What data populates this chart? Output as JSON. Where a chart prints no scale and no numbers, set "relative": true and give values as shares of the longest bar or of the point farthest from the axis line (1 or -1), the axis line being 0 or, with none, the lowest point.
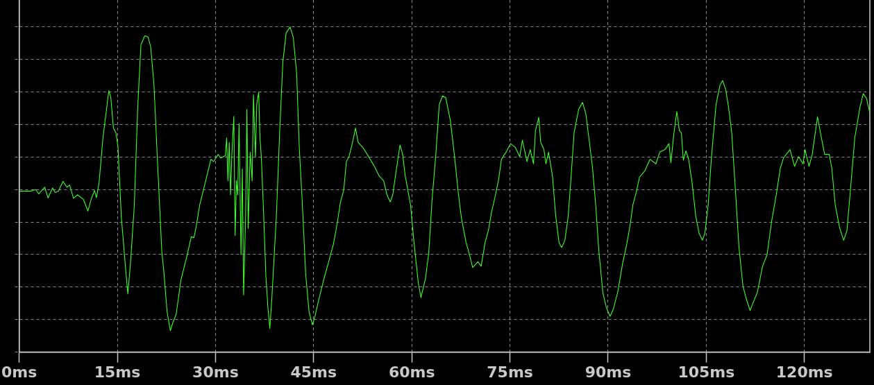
{
  "chart_data": {
    "type": "line",
    "relative": true,
    "color": "#3cff28",
    "marker": "none",
    "grid": true,
    "xlim": [
      0,
      130
    ],
    "xticks": [
      {
        "value": 0,
        "label": "0ms"
      },
      {
        "value": 15,
        "label": "15ms"
      },
      {
        "value": 30,
        "label": "30ms"
      },
      {
        "value": 45,
        "label": "45ms"
      },
      {
        "value": 60,
        "label": "60ms"
      },
      {
        "value": 75,
        "label": "75ms"
      },
      {
        "value": 90,
        "label": "90ms"
      },
      {
        "value": 105,
        "label": "105ms"
      },
      {
        "value": 120,
        "label": "120ms"
      }
    ],
    "x": [
      0,
      1.8,
      2.5,
      3.0,
      3.9,
      4.4,
      5.1,
      5.5,
      6.0,
      6.7,
      7.3,
      7.7,
      8.3,
      8.9,
      9.8,
      10.5,
      11.0,
      11.5,
      11.8,
      12.2,
      12.8,
      13.7,
      14.0,
      14.4,
      14.8,
      15.1,
      15.6,
      16.2,
      16.6,
      17.0,
      17.6,
      18.1,
      18.6,
      19.2,
      19.7,
      20.1,
      20.6,
      21.1,
      21.8,
      22.1,
      22.6,
      23.1,
      23.5,
      24.0,
      24.7,
      25.6,
      26.3,
      26.7,
      27.0,
      27.6,
      28.5,
      29.3,
      29.7,
      30.4,
      30.8,
      31.5,
      31.7,
      31.9,
      32.1,
      32.3,
      32.5,
      32.8,
      33.0,
      33.2,
      33.4,
      33.6,
      33.9,
      34.1,
      34.3,
      34.6,
      34.8,
      35.0,
      35.3,
      35.6,
      35.8,
      36.1,
      36.3,
      36.6,
      36.8,
      37.0,
      37.3,
      37.7,
      38.0,
      38.3,
      38.6,
      38.9,
      39.3,
      39.8,
      40.3,
      40.8,
      41.4,
      41.9,
      42.4,
      42.8,
      43.2,
      43.8,
      44.3,
      44.8,
      45.2,
      45.7,
      46.5,
      47.2,
      48.0,
      48.6,
      49.1,
      49.6,
      50.0,
      50.4,
      50.9,
      51.4,
      51.8,
      52.5,
      53.4,
      54.3,
      55.0,
      55.7,
      56.2,
      56.7,
      57.1,
      57.5,
      58.2,
      58.6,
      59.0,
      59.8,
      60.3,
      61.0,
      61.4,
      62.1,
      62.6,
      63.1,
      63.7,
      64.2,
      64.7,
      65.2,
      65.9,
      66.5,
      67.1,
      67.6,
      68.3,
      68.9,
      69.3,
      70.1,
      70.6,
      71.2,
      71.7,
      72.2,
      72.8,
      73.3,
      73.7,
      74.4,
      75.1,
      75.8,
      76.5,
      76.9,
      77.6,
      78.1,
      78.6,
      78.9,
      79.4,
      79.7,
      80.2,
      80.5,
      80.9,
      81.5,
      82.0,
      82.5,
      82.9,
      83.4,
      83.9,
      84.3,
      84.8,
      85.5,
      86.1,
      86.6,
      87.1,
      87.6,
      88.1,
      88.6,
      89.2,
      89.7,
      90.3,
      90.8,
      91.5,
      92.2,
      92.9,
      93.4,
      93.8,
      94.3,
      94.8,
      95.6,
      96.4,
      97.3,
      97.9,
      98.7,
      99.3,
      99.6,
      100.0,
      100.5,
      100.9,
      101.2,
      101.5,
      101.9,
      102.3,
      102.8,
      103.4,
      103.9,
      104.4,
      104.8,
      105.3,
      105.8,
      106.5,
      107.1,
      107.5,
      108.0,
      108.5,
      108.9,
      109.5,
      110.0,
      110.6,
      111.1,
      111.7,
      112.2,
      112.8,
      113.6,
      114.3,
      115.0,
      115.7,
      116.3,
      116.8,
      117.8,
      118.5,
      119.1,
      119.8,
      120.1,
      120.7,
      121.2,
      122.0,
      122.6,
      123.1,
      123.8,
      124.2,
      124.7,
      125.4,
      126.0,
      126.5,
      127.0,
      127.7,
      128.5,
      129.0,
      129.5,
      130.0
    ],
    "values": [
      0.495,
      0.495,
      0.5,
      0.487,
      0.507,
      0.474,
      0.505,
      0.491,
      0.495,
      0.525,
      0.507,
      0.514,
      0.473,
      0.484,
      0.47,
      0.434,
      0.47,
      0.497,
      0.475,
      0.52,
      0.659,
      0.804,
      0.784,
      0.689,
      0.674,
      0.63,
      0.418,
      0.271,
      0.179,
      0.271,
      0.454,
      0.747,
      0.945,
      0.973,
      0.969,
      0.938,
      0.821,
      0.601,
      0.308,
      0.249,
      0.124,
      0.066,
      0.092,
      0.117,
      0.22,
      0.293,
      0.355,
      0.352,
      0.381,
      0.454,
      0.527,
      0.593,
      0.586,
      0.608,
      0.597,
      0.604,
      0.659,
      0.527,
      0.645,
      0.484,
      0.608,
      0.725,
      0.359,
      0.527,
      0.484,
      0.703,
      0.3,
      0.564,
      0.176,
      0.418,
      0.747,
      0.381,
      0.615,
      0.527,
      0.791,
      0.601,
      0.762,
      0.799,
      0.659,
      0.601,
      0.454,
      0.235,
      0.139,
      0.073,
      0.161,
      0.271,
      0.418,
      0.674,
      0.894,
      0.982,
      1.0,
      0.967,
      0.857,
      0.63,
      0.484,
      0.235,
      0.124,
      0.084,
      0.11,
      0.154,
      0.22,
      0.271,
      0.33,
      0.396,
      0.462,
      0.498,
      0.586,
      0.601,
      0.641,
      0.689,
      0.645,
      0.63,
      0.601,
      0.571,
      0.542,
      0.527,
      0.484,
      0.462,
      0.484,
      0.542,
      0.637,
      0.608,
      0.542,
      0.454,
      0.344,
      0.212,
      0.168,
      0.227,
      0.308,
      0.469,
      0.615,
      0.762,
      0.788,
      0.782,
      0.711,
      0.608,
      0.491,
      0.41,
      0.337,
      0.293,
      0.26,
      0.278,
      0.264,
      0.337,
      0.374,
      0.432,
      0.484,
      0.535,
      0.593,
      0.615,
      0.641,
      0.63,
      0.601,
      0.652,
      0.586,
      0.623,
      0.579,
      0.681,
      0.722,
      0.645,
      0.623,
      0.579,
      0.615,
      0.542,
      0.418,
      0.337,
      0.322,
      0.344,
      0.418,
      0.527,
      0.674,
      0.747,
      0.768,
      0.733,
      0.652,
      0.571,
      0.454,
      0.308,
      0.183,
      0.139,
      0.11,
      0.132,
      0.187,
      0.271,
      0.337,
      0.396,
      0.454,
      0.491,
      0.538,
      0.557,
      0.593,
      0.579,
      0.615,
      0.623,
      0.641,
      0.582,
      0.663,
      0.74,
      0.681,
      0.674,
      0.59,
      0.619,
      0.593,
      0.527,
      0.418,
      0.366,
      0.344,
      0.366,
      0.454,
      0.601,
      0.762,
      0.821,
      0.835,
      0.806,
      0.74,
      0.674,
      0.484,
      0.322,
      0.205,
      0.165,
      0.128,
      0.154,
      0.183,
      0.264,
      0.3,
      0.403,
      0.484,
      0.564,
      0.597,
      0.623,
      0.571,
      0.601,
      0.579,
      0.623,
      0.571,
      0.608,
      0.724,
      0.659,
      0.608,
      0.608,
      0.564,
      0.454,
      0.381,
      0.344,
      0.374,
      0.491,
      0.659,
      0.754,
      0.795,
      0.78,
      0.736
    ]
  }
}
